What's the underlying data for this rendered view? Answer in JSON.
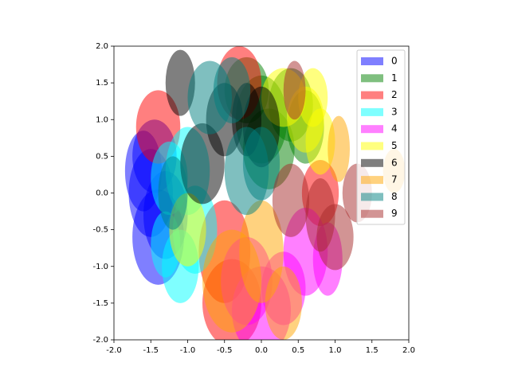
{
  "chart_data": {
    "type": "ellipse",
    "alpha": 0.5,
    "xlim": [
      -2,
      2
    ],
    "ylim": [
      -2,
      2
    ],
    "xticks": [
      {
        "value": -2,
        "label": "-2.0"
      },
      {
        "value": -1.5,
        "label": "-1.5"
      },
      {
        "value": -1,
        "label": "-1.0"
      },
      {
        "value": -0.5,
        "label": "-0.5"
      },
      {
        "value": 0,
        "label": "0.0"
      },
      {
        "value": 0.5,
        "label": "0.5"
      },
      {
        "value": 1,
        "label": "1.0"
      },
      {
        "value": 1.5,
        "label": "1.5"
      },
      {
        "value": 2,
        "label": "2.0"
      }
    ],
    "yticks": [
      {
        "value": -2,
        "label": "-2.0"
      },
      {
        "value": -1.5,
        "label": "-1.5"
      },
      {
        "value": -1,
        "label": "-1.0"
      },
      {
        "value": -0.5,
        "label": "-0.5"
      },
      {
        "value": 0,
        "label": "0.0"
      },
      {
        "value": 0.5,
        "label": "0.5"
      },
      {
        "value": 1,
        "label": "1.0"
      },
      {
        "value": 1.5,
        "label": "1.5"
      },
      {
        "value": 2,
        "label": "2.0"
      }
    ],
    "legend": "upper right",
    "series": [
      {
        "name": "0",
        "color": "blue",
        "x": [
          -1.5,
          -1.4,
          -1.6,
          -1.3,
          -1.45
        ],
        "y": [
          0.0,
          -0.6,
          0.3,
          -0.3,
          0.5
        ],
        "width": [
          0.6,
          0.7,
          0.5,
          0.6,
          0.6
        ],
        "height": [
          1.2,
          1.3,
          1.1,
          1.2,
          1.0
        ]
      },
      {
        "name": "1",
        "color": "green",
        "x": [
          0.0,
          0.4,
          0.1,
          -0.2,
          0.6
        ],
        "y": [
          1.0,
          1.2,
          0.6,
          1.4,
          0.9
        ],
        "width": [
          0.7,
          0.6,
          0.7,
          0.6,
          0.5
        ],
        "height": [
          1.2,
          1.0,
          1.1,
          0.9,
          1.0
        ]
      },
      {
        "name": "2",
        "color": "red",
        "x": [
          -0.5,
          -0.3,
          0.8,
          -1.4,
          -0.4
        ],
        "y": [
          -0.8,
          1.5,
          0.0,
          0.9,
          -1.5
        ],
        "width": [
          0.7,
          0.6,
          0.5,
          0.6,
          0.8
        ],
        "height": [
          1.4,
          1.0,
          0.9,
          1.0,
          1.2
        ]
      },
      {
        "name": "3",
        "color": "cyan",
        "x": [
          -1.1,
          -1.0,
          -1.25,
          -0.9,
          -1.3
        ],
        "y": [
          -1.0,
          0.3,
          0.2,
          -0.5,
          -0.7
        ],
        "width": [
          0.5,
          0.6,
          0.5,
          0.6,
          0.4
        ],
        "height": [
          1.0,
          1.2,
          1.0,
          1.2,
          0.9
        ]
      },
      {
        "name": "4",
        "color": "magenta",
        "x": [
          0.0,
          0.6,
          0.9,
          0.3,
          -0.2
        ],
        "y": [
          -1.6,
          -0.8,
          -0.9,
          -1.3,
          -1.2
        ],
        "width": [
          0.8,
          0.6,
          0.4,
          0.6,
          0.7
        ],
        "height": [
          1.2,
          1.2,
          1.0,
          1.0,
          1.2
        ]
      },
      {
        "name": "5",
        "color": "yellow",
        "x": [
          0.6,
          0.8,
          -1.0,
          0.3,
          0.7
        ],
        "y": [
          1.0,
          0.7,
          -0.5,
          1.3,
          1.3
        ],
        "width": [
          0.5,
          0.4,
          0.5,
          0.6,
          0.4
        ],
        "height": [
          0.9,
          0.9,
          1.0,
          0.8,
          0.8
        ]
      },
      {
        "name": "6",
        "color": "black",
        "x": [
          -0.5,
          -0.8,
          -1.1,
          0.0,
          -0.2
        ],
        "y": [
          1.0,
          0.4,
          1.5,
          0.9,
          1.0
        ],
        "width": [
          0.5,
          0.6,
          0.4,
          0.5,
          0.4
        ],
        "height": [
          1.0,
          1.1,
          0.9,
          1.1,
          1.0
        ]
      },
      {
        "name": "7",
        "color": "orange",
        "x": [
          -0.4,
          0.0,
          1.05,
          1.8,
          0.3
        ],
        "y": [
          -1.2,
          -0.8,
          0.6,
          0.3,
          -1.5
        ],
        "width": [
          0.8,
          0.6,
          0.3,
          0.3,
          0.5
        ],
        "height": [
          1.4,
          1.4,
          0.9,
          0.6,
          1.0
        ]
      },
      {
        "name": "8",
        "color": "teal",
        "x": [
          -0.7,
          -0.2,
          -1.2,
          -0.4,
          0.0
        ],
        "y": [
          1.3,
          0.3,
          0.0,
          1.4,
          0.4
        ],
        "width": [
          0.6,
          0.6,
          0.4,
          0.5,
          0.5
        ],
        "height": [
          1.0,
          1.2,
          1.0,
          0.9,
          1.0
        ]
      },
      {
        "name": "9",
        "color": "brown",
        "x": [
          0.4,
          1.3,
          0.45,
          1.0,
          0.8
        ],
        "y": [
          -0.1,
          0.0,
          1.4,
          -0.6,
          -0.3
        ],
        "width": [
          0.5,
          0.4,
          0.3,
          0.5,
          0.4
        ],
        "height": [
          1.0,
          0.8,
          0.8,
          0.9,
          1.0
        ]
      }
    ]
  }
}
